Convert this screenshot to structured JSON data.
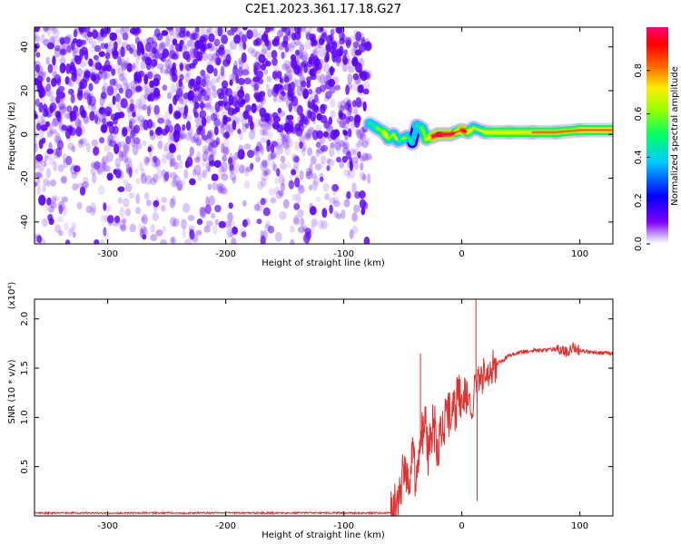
{
  "title": "C2E1.2023.361.17.18.G27",
  "colors": {
    "frame": "#000000",
    "snr_line": "#e03030",
    "cloud_base": "#7a2cff",
    "cloud_dark": "#5a00ff"
  },
  "chart_data": [
    {
      "type": "heatmap",
      "title": "C2E1.2023.361.17.18.G27",
      "xlabel": "Height of straight line (km)",
      "ylabel": "Frequency (Hz)",
      "xlim": [
        -362,
        128
      ],
      "ylim": [
        -50,
        49
      ],
      "xticks": [
        -300,
        -200,
        -100,
        0,
        100
      ],
      "yticks": [
        -40,
        -20,
        0,
        20,
        40
      ],
      "colorbar": {
        "label": "Normalized spectral amplitude",
        "range": [
          0.0,
          1.0
        ],
        "ticks": [
          "0.0",
          "0.2",
          "0.4",
          "0.6",
          "0.8"
        ],
        "tick_values": [
          0.0,
          0.2,
          0.4,
          0.6,
          0.8
        ],
        "colors": [
          "#ffffff",
          "#8000ff",
          "#0000ff",
          "#00ccff",
          "#00ff66",
          "#99ff00",
          "#ffee00",
          "#ff6600",
          "#ff0000",
          "#ff0077"
        ]
      },
      "noise_region_x": [
        -362,
        -78
      ],
      "signal_track": {
        "x": [
          -78,
          -72,
          -66,
          -62,
          -58,
          -54,
          -50,
          -46,
          -42,
          -38,
          -34,
          -30,
          -25,
          -20,
          -15,
          -10,
          -5,
          0,
          5,
          10,
          20,
          40,
          60,
          80,
          100,
          128
        ],
        "y": [
          5,
          3,
          1,
          -2,
          0,
          -3,
          -2,
          -1,
          -4,
          4,
          3,
          -2,
          -1,
          0,
          0,
          0,
          1,
          2,
          1,
          3,
          1,
          1,
          1,
          1,
          2,
          2
        ],
        "amplitude": [
          0.4,
          0.5,
          0.6,
          0.45,
          0.55,
          0.35,
          0.5,
          0.4,
          0.3,
          0.35,
          0.45,
          0.6,
          0.9,
          0.95,
          0.9,
          0.85,
          0.7,
          0.8,
          0.6,
          0.55,
          0.6,
          0.62,
          0.63,
          0.65,
          0.7,
          0.7
        ]
      }
    },
    {
      "type": "line",
      "xlabel": "Height of straight line (km)",
      "ylabel": "SNR (10 * v/v)",
      "yunit": "(x10⁴)",
      "xlim": [
        -362,
        128
      ],
      "ylim": [
        0,
        2.2
      ],
      "xticks": [
        -300,
        -200,
        -100,
        0,
        100
      ],
      "yticks": [
        0.5,
        1.0,
        1.5,
        2.0
      ],
      "ytick_labels": [
        "0.5",
        "1.0",
        "1.5",
        "2.0"
      ],
      "series": [
        {
          "x": [
            -362,
            -300,
            -200,
            -100,
            -58,
            -54,
            -50,
            -46,
            -42,
            -38,
            -34,
            -31,
            -28,
            -24,
            -20,
            -17,
            -14,
            -10,
            -5,
            0,
            5,
            9,
            12,
            14,
            18,
            22,
            26,
            30,
            35,
            40,
            50,
            60,
            70,
            80,
            85,
            90,
            95,
            100,
            110,
            120,
            128
          ],
          "y": [
            0.03,
            0.03,
            0.03,
            0.03,
            0.03,
            0.15,
            0.45,
            0.25,
            0.6,
            0.3,
            0.8,
            1.05,
            0.6,
            0.95,
            0.7,
            0.9,
            0.95,
            1.0,
            1.15,
            1.25,
            1.2,
            1.15,
            1.35,
            1.4,
            1.42,
            1.45,
            1.5,
            1.55,
            1.58,
            1.63,
            1.66,
            1.68,
            1.68,
            1.69,
            1.7,
            1.65,
            1.72,
            1.68,
            1.66,
            1.65,
            1.65
          ],
          "spikes": [
            {
              "x": -35,
              "y": 1.65
            },
            {
              "x": 12,
              "y": 2.22
            },
            {
              "x": 13,
              "y": 0.15
            }
          ]
        }
      ]
    }
  ]
}
